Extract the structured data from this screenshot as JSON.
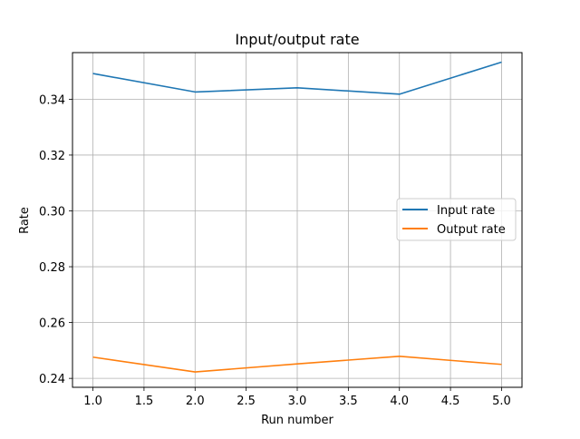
{
  "chart_data": {
    "type": "line",
    "title": "Input/output rate",
    "xlabel": "Run number",
    "ylabel": "Rate",
    "x": [
      1.0,
      2.0,
      3.0,
      4.0,
      5.0
    ],
    "xlim": [
      0.8,
      5.2
    ],
    "ylim": [
      0.2368,
      0.3567
    ],
    "xticks": [
      1.0,
      1.5,
      2.0,
      2.5,
      3.0,
      3.5,
      4.0,
      4.5,
      5.0
    ],
    "xtick_labels": [
      "1.0",
      "1.5",
      "2.0",
      "2.5",
      "3.0",
      "3.5",
      "4.0",
      "4.5",
      "5.0"
    ],
    "yticks": [
      0.24,
      0.26,
      0.28,
      0.3,
      0.32,
      0.34
    ],
    "ytick_labels": [
      "0.24",
      "0.26",
      "0.28",
      "0.30",
      "0.32",
      "0.34"
    ],
    "grid": true,
    "legend_position": "center-right",
    "series": [
      {
        "name": "Input rate",
        "color": "#1f77b4",
        "values": [
          0.3492,
          0.3426,
          0.3441,
          0.3418,
          0.3533
        ]
      },
      {
        "name": "Output rate",
        "color": "#ff7f0e",
        "values": [
          0.2476,
          0.2423,
          0.2452,
          0.2479,
          0.245
        ]
      }
    ]
  }
}
